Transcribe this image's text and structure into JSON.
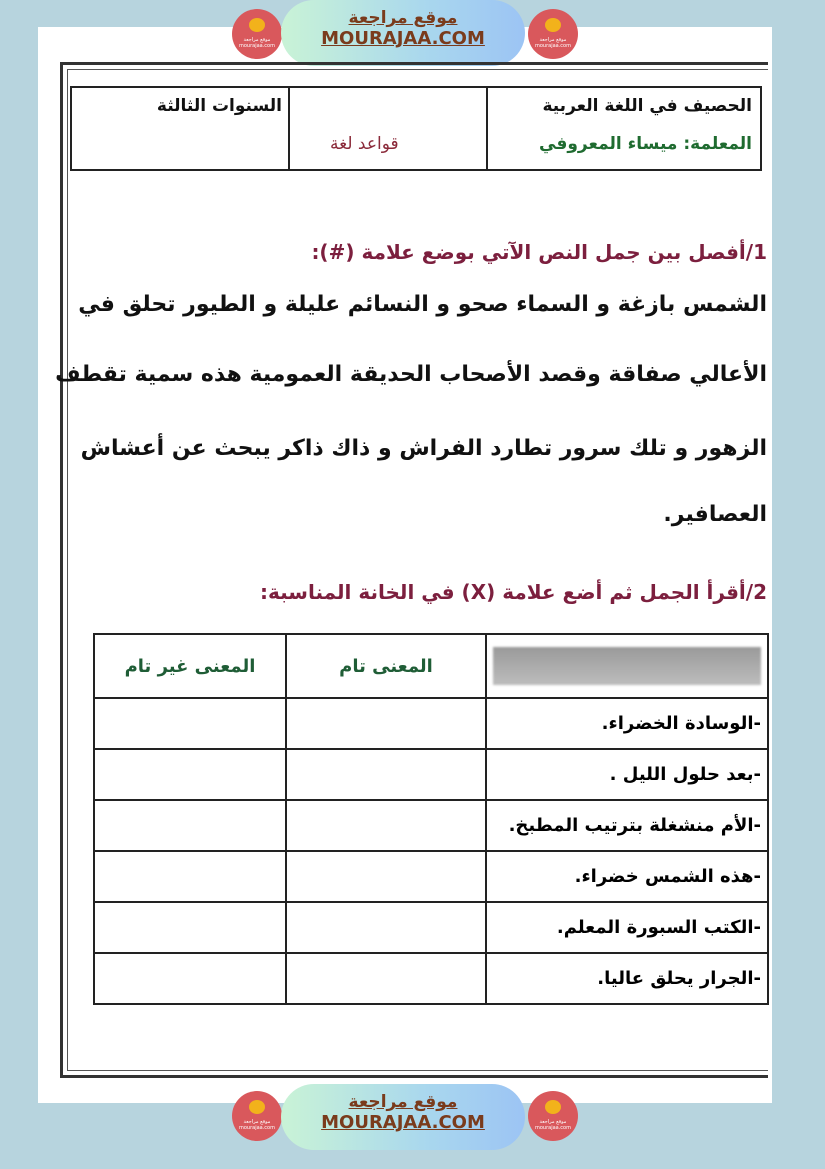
{
  "banner": {
    "site_ar": "موقع مراجعة",
    "site_en": "MOURAJAA.COM",
    "logo_text": "موقع مراجعة mourajaa.com"
  },
  "header": {
    "title": "الحصيف في اللغة العربية",
    "teacher": "المعلمة: ميساء المعروفي",
    "subject": "قواعد لغة",
    "grade": "السنوات الثالثة"
  },
  "q1": {
    "title": "1/أفصل بين جمل النص الآتي بوضع علامة (#):",
    "lines": [
      "الشمس بازغة و السماء صحو و النسائم عليلة و الطيور تحلق في",
      "الأعالي صفاقة وقصد الأصحاب الحديقة العمومية هذه سمية تقطف",
      "الزهور و تلك سرور تطارد الفراش و ذاك ذاكر يبحث عن أعشاش",
      "العصافير."
    ]
  },
  "q2": {
    "title": "2/أقرأ الجمل ثم أضع علامة (X) في الخانة المناسبة:",
    "columns": [
      "",
      "المعنى تام",
      "المعنى غير تام"
    ],
    "rows": [
      "-الوسادة الخضراء.",
      "-بعد حلول الليل .",
      "-الأم منشغلة بترتيب المطبخ.",
      "-هذه الشمس خضراء.",
      "-الكتب السبورة المعلم.",
      "-الجرار يحلق عاليا."
    ]
  },
  "colors": {
    "question": "#7c1f3e",
    "teacher": "#1f6b30",
    "subject": "#8b2a3a",
    "background": "#b7d4de"
  }
}
